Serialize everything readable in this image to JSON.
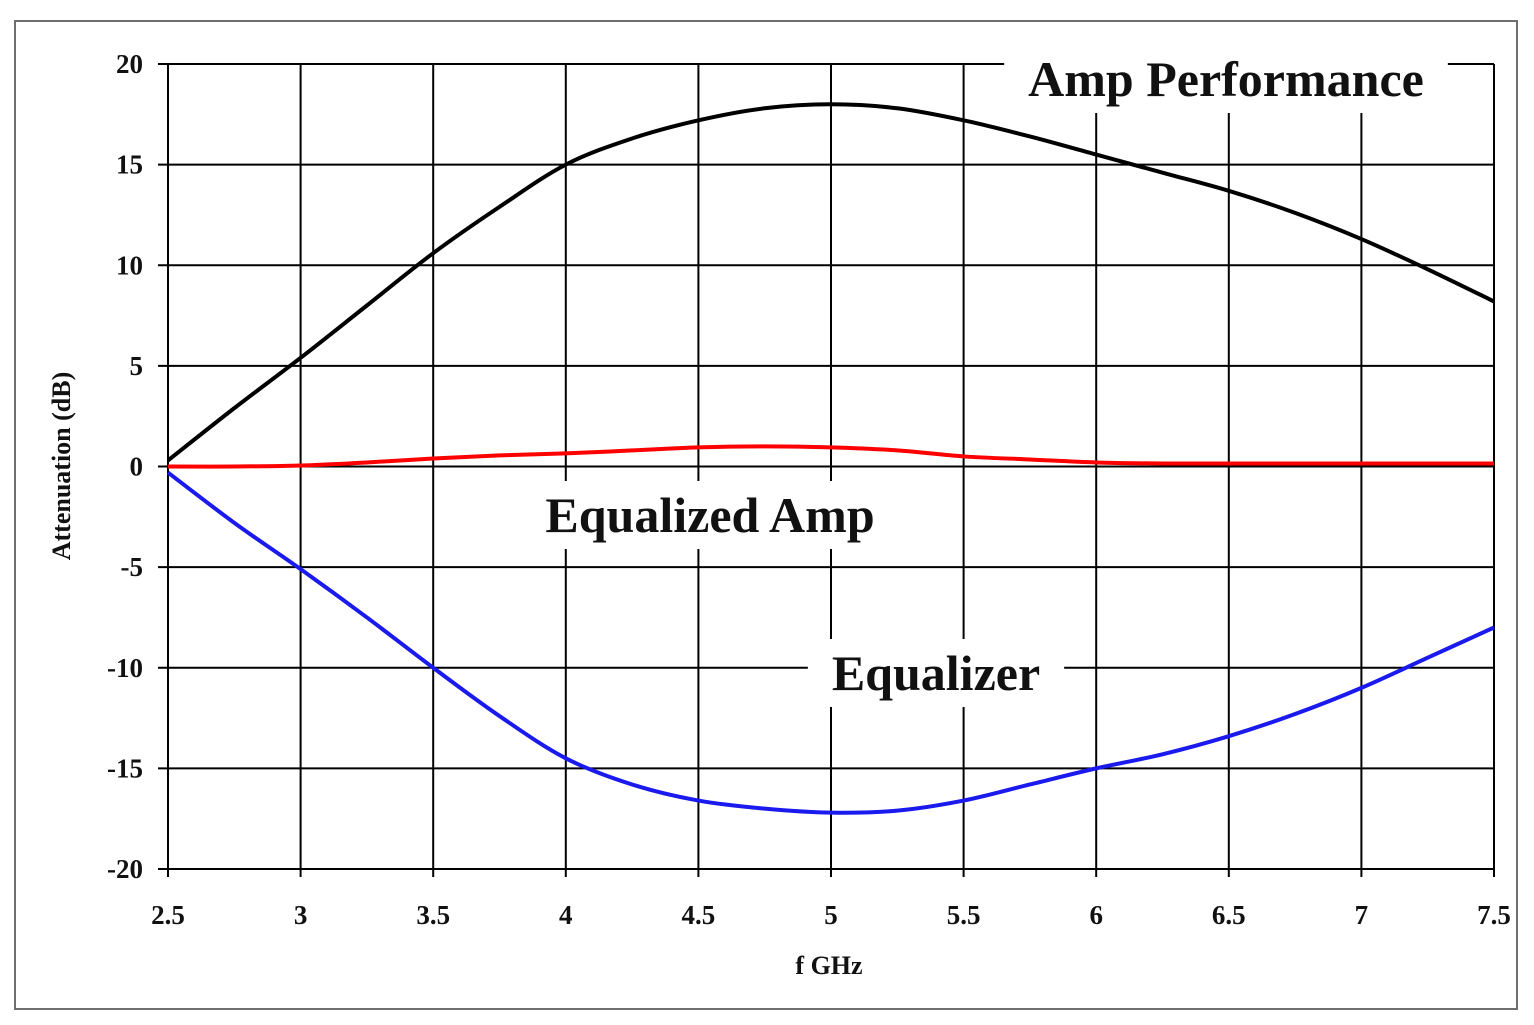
{
  "chart_data": {
    "type": "line",
    "xlabel": "f GHz",
    "ylabel": "Attenuation (dB)",
    "xlim": [
      2.5,
      7.5
    ],
    "ylim": [
      -20,
      20
    ],
    "x_ticks": [
      "2.5",
      "3",
      "3.5",
      "4",
      "4.5",
      "5",
      "5.5",
      "6",
      "6.5",
      "7",
      "7.5"
    ],
    "y_ticks": [
      "20",
      "15",
      "10",
      "5",
      "0",
      "-5",
      "-10",
      "-15",
      "-20"
    ],
    "grid": true,
    "annotations": [
      "Amp Performance",
      "Equalized Amp",
      "Equalizer"
    ],
    "x": [
      2.5,
      2.75,
      3.0,
      3.25,
      3.5,
      3.75,
      4.0,
      4.25,
      4.5,
      4.75,
      5.0,
      5.25,
      5.5,
      5.75,
      6.0,
      6.25,
      6.5,
      6.75,
      7.0,
      7.25,
      7.5
    ],
    "series": [
      {
        "color": "#000000",
        "values": [
          0.3,
          2.9,
          5.4,
          8.0,
          10.6,
          12.9,
          15.0,
          16.3,
          17.2,
          17.8,
          18.0,
          17.8,
          17.2,
          16.4,
          15.5,
          14.6,
          13.7,
          12.6,
          11.3,
          9.8,
          8.2
        ]
      },
      {
        "color": "#ff0000",
        "values": [
          0.0,
          0.0,
          0.05,
          0.2,
          0.4,
          0.55,
          0.65,
          0.8,
          0.95,
          1.0,
          0.95,
          0.8,
          0.5,
          0.35,
          0.2,
          0.15,
          0.15,
          0.15,
          0.15,
          0.15,
          0.15
        ]
      },
      {
        "color": "#1a1aee",
        "values": [
          -0.3,
          -2.8,
          -5.1,
          -7.5,
          -10.0,
          -12.4,
          -14.5,
          -15.8,
          -16.6,
          -17.0,
          -17.2,
          -17.1,
          -16.6,
          -15.8,
          -15.0,
          -14.3,
          -13.4,
          -12.3,
          -11.0,
          -9.5,
          -8.0
        ]
      }
    ]
  }
}
